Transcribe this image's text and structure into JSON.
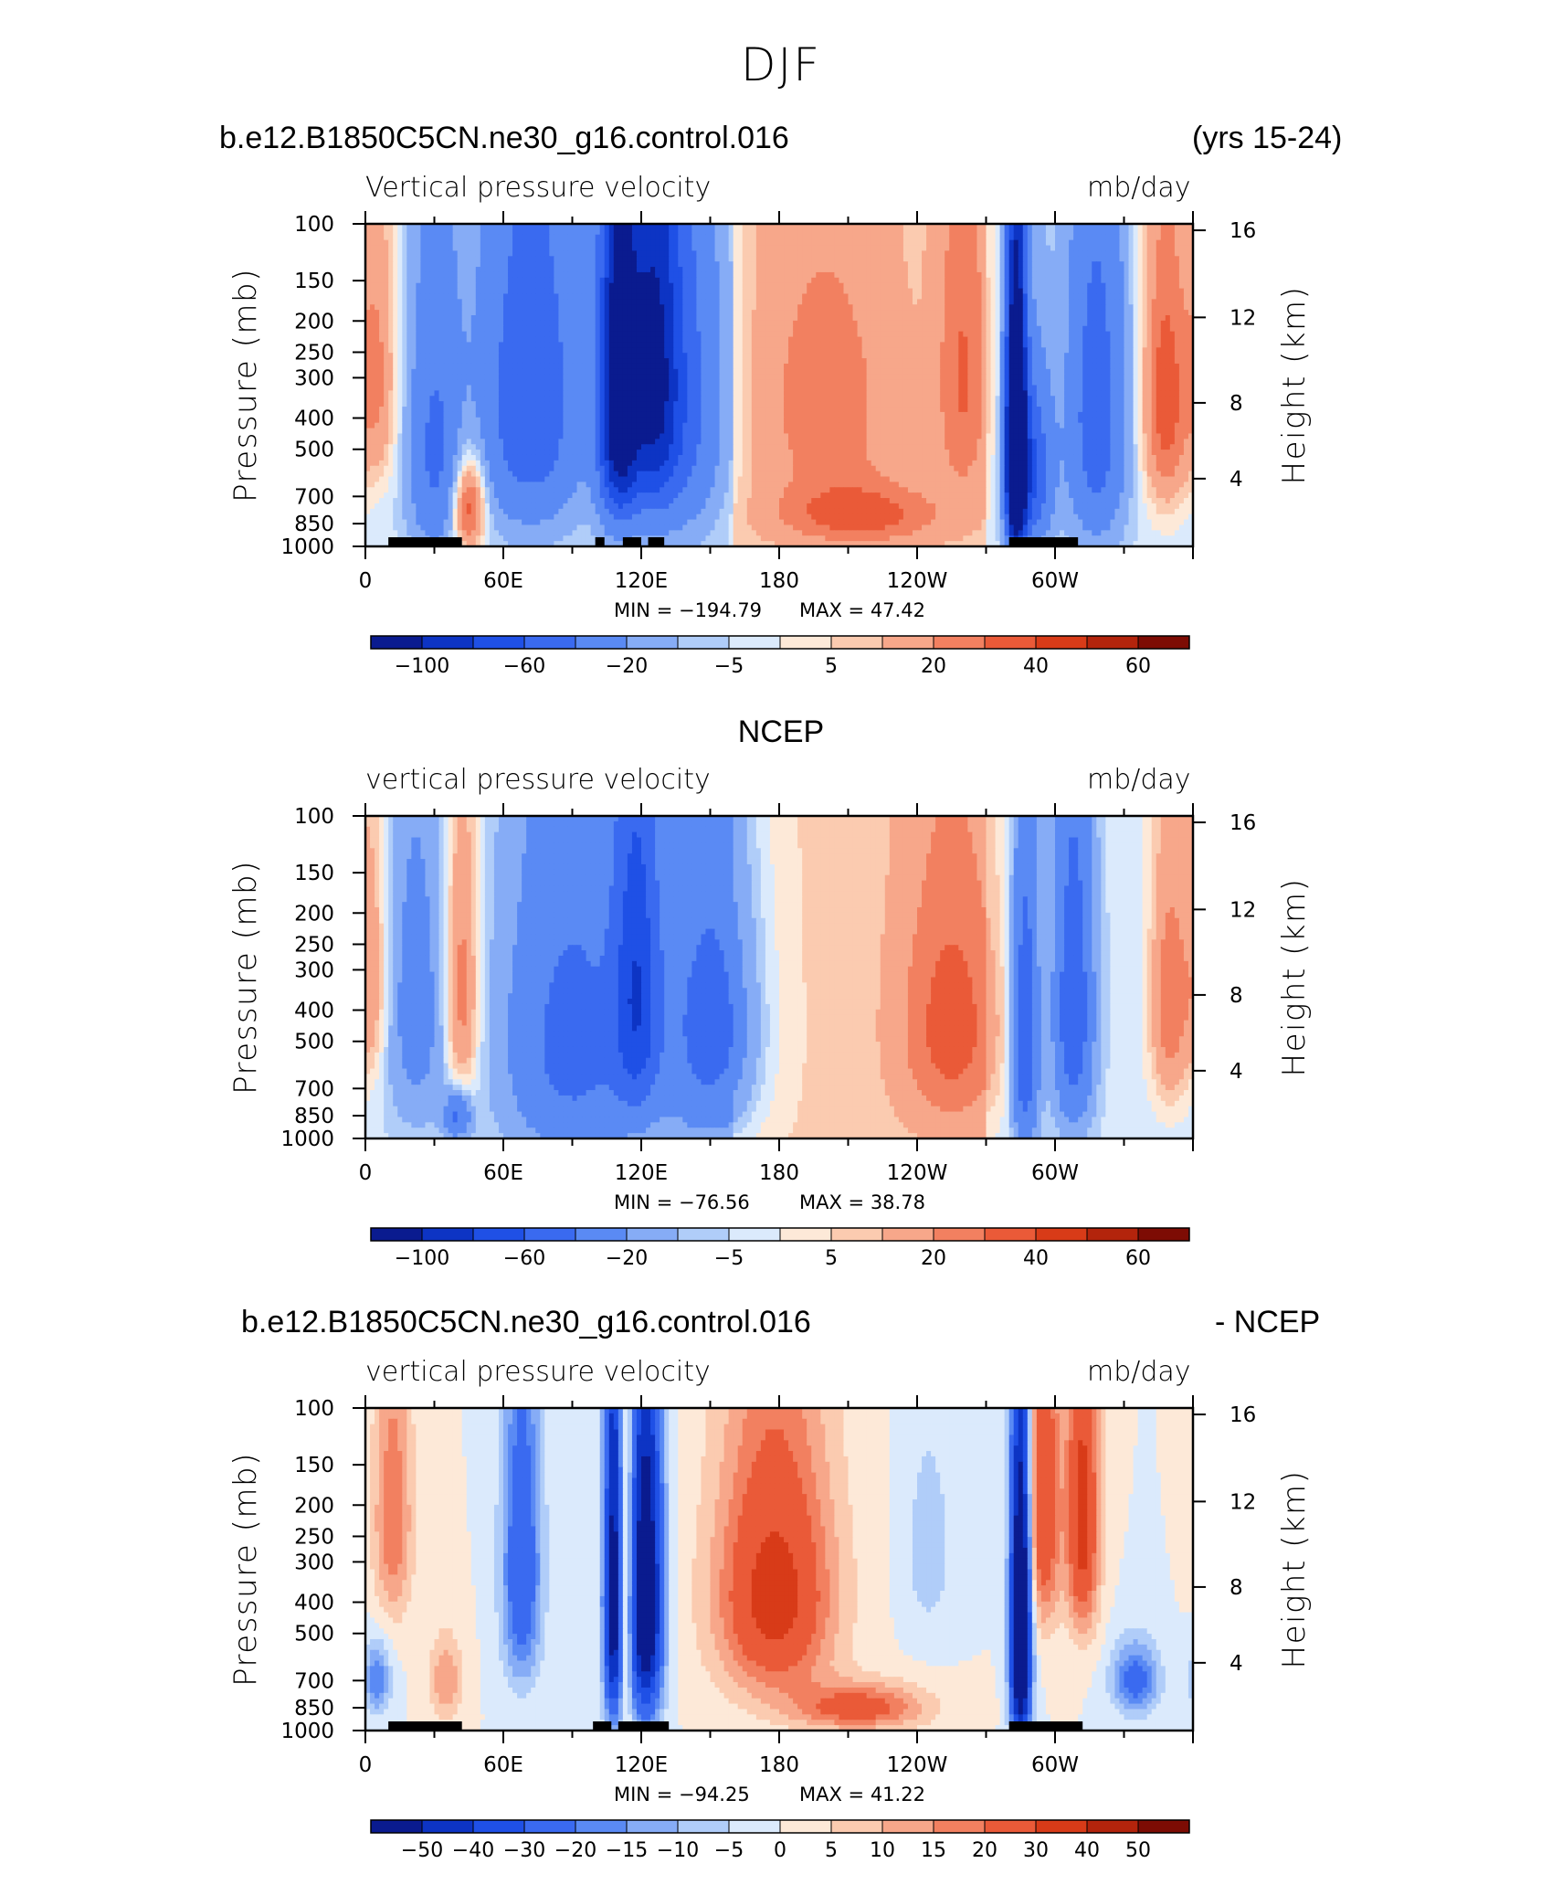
{
  "header": {
    "season": "DJF",
    "case_name": "b.e12.B1850C5CN.ne30_g16.control.016",
    "years": "(yrs 15-24)"
  },
  "chart_data": [
    {
      "type": "heatmap",
      "panel": "model",
      "title": "",
      "variable_label": "Vertical pressure velocity",
      "units_label": "mb/day",
      "ylabel": "Pressure (mb)",
      "y2label": "Height (km)",
      "x_ticks": [
        "0",
        "60E",
        "120E",
        "180",
        "120W",
        "60W"
      ],
      "y_ticks": [
        "100",
        "150",
        "200",
        "250",
        "300",
        "400",
        "500",
        "700",
        "850",
        "1000"
      ],
      "y2_ticks": [
        "16",
        "12",
        "8",
        "4"
      ],
      "min_text": "MIN = −194.79",
      "max_text": "MAX =   47.42",
      "colorbar_labels": [
        "−100",
        "−60",
        "−20",
        "−5",
        "5",
        "20",
        "40",
        "60"
      ],
      "colors": [
        "#0a1b8f",
        "#0d34c4",
        "#1f50e6",
        "#3a6af0",
        "#5a8af4",
        "#86acf6",
        "#b0cdf9",
        "#dbeafc",
        "#fde9d8",
        "#fbcbb0",
        "#f7a78a",
        "#f28060",
        "#ea5a38",
        "#d83b18",
        "#b3240c",
        "#7d0c04"
      ],
      "blobs": [
        {
          "lon": 5,
          "p": 300,
          "wlon": 6,
          "wp": 420,
          "v": 25
        },
        {
          "lon": 30,
          "p": 500,
          "wlon": 8,
          "wp": 700,
          "v": -40
        },
        {
          "lon": 45,
          "p": 750,
          "wlon": 5,
          "wp": 350,
          "v": 45
        },
        {
          "lon": 72,
          "p": 350,
          "wlon": 16,
          "wp": 650,
          "v": -55
        },
        {
          "lon": 110,
          "p": 350,
          "wlon": 6,
          "wp": 600,
          "v": -120
        },
        {
          "lon": 125,
          "p": 300,
          "wlon": 8,
          "wp": 600,
          "v": -90
        },
        {
          "lon": 140,
          "p": 350,
          "wlon": 12,
          "wp": 700,
          "v": -40
        },
        {
          "lon": 200,
          "p": 350,
          "wlon": 22,
          "wp": 500,
          "v": 20
        },
        {
          "lon": 215,
          "p": 800,
          "wlon": 25,
          "wp": 250,
          "v": 30
        },
        {
          "lon": 260,
          "p": 300,
          "wlon": 8,
          "wp": 500,
          "v": 25
        },
        {
          "lon": 283,
          "p": 500,
          "wlon": 3,
          "wp": 650,
          "v": -190
        },
        {
          "lon": 290,
          "p": 600,
          "wlon": 6,
          "wp": 500,
          "v": -60
        },
        {
          "lon": 318,
          "p": 400,
          "wlon": 9,
          "wp": 700,
          "v": -50
        },
        {
          "lon": 348,
          "p": 350,
          "wlon": 7,
          "wp": 500,
          "v": 40
        }
      ],
      "topography_lons": [
        [
          10,
          42
        ],
        [
          100,
          104
        ],
        [
          112,
          120
        ],
        [
          123,
          130
        ],
        [
          280,
          310
        ]
      ]
    },
    {
      "type": "heatmap",
      "panel": "obs",
      "title": "NCEP",
      "variable_label": "vertical pressure velocity",
      "units_label": "mb/day",
      "ylabel": "Pressure (mb)",
      "y2label": "Height (km)",
      "x_ticks": [
        "0",
        "60E",
        "120E",
        "180",
        "120W",
        "60W"
      ],
      "y_ticks": [
        "100",
        "150",
        "200",
        "250",
        "300",
        "400",
        "500",
        "700",
        "850",
        "1000"
      ],
      "y2_ticks": [
        "16",
        "12",
        "8",
        "4"
      ],
      "min_text": "MIN = −76.56",
      "max_text": "MAX =   38.78",
      "colorbar_labels": [
        "−100",
        "−60",
        "−20",
        "−5",
        "5",
        "20",
        "40",
        "60"
      ],
      "colors": [
        "#0a1b8f",
        "#0d34c4",
        "#1f50e6",
        "#3a6af0",
        "#5a8af4",
        "#86acf6",
        "#b0cdf9",
        "#dbeafc",
        "#fde9d8",
        "#fbcbb0",
        "#f7a78a",
        "#f28060",
        "#ea5a38",
        "#d83b18",
        "#b3240c",
        "#7d0c04"
      ],
      "blobs": [
        {
          "lon": 3,
          "p": 320,
          "wlon": 5,
          "wp": 420,
          "v": 20
        },
        {
          "lon": 22,
          "p": 400,
          "wlon": 9,
          "wp": 650,
          "v": -25
        },
        {
          "lon": 42,
          "p": 350,
          "wlon": 5,
          "wp": 500,
          "v": 30
        },
        {
          "lon": 40,
          "p": 850,
          "wlon": 4,
          "wp": 200,
          "v": -40
        },
        {
          "lon": 90,
          "p": 500,
          "wlon": 20,
          "wp": 800,
          "v": -45
        },
        {
          "lon": 118,
          "p": 350,
          "wlon": 7,
          "wp": 600,
          "v": -60
        },
        {
          "lon": 150,
          "p": 450,
          "wlon": 15,
          "wp": 700,
          "v": -45
        },
        {
          "lon": 255,
          "p": 450,
          "wlon": 16,
          "wp": 600,
          "v": 30
        },
        {
          "lon": 287,
          "p": 500,
          "wlon": 4,
          "wp": 700,
          "v": -60
        },
        {
          "lon": 308,
          "p": 400,
          "wlon": 6,
          "wp": 650,
          "v": -55
        },
        {
          "lon": 350,
          "p": 380,
          "wlon": 6,
          "wp": 500,
          "v": 30
        }
      ],
      "topography_lons": []
    },
    {
      "type": "heatmap",
      "panel": "difference",
      "title": "",
      "variable_label": "vertical pressure velocity",
      "units_label": "mb/day",
      "ylabel": "Pressure (mb)",
      "y2label": "Height (km)",
      "x_ticks": [
        "0",
        "60E",
        "120E",
        "180",
        "120W",
        "60W"
      ],
      "y_ticks": [
        "100",
        "150",
        "200",
        "250",
        "300",
        "400",
        "500",
        "700",
        "850",
        "1000"
      ],
      "y2_ticks": [
        "16",
        "12",
        "8",
        "4"
      ],
      "min_text": "MIN = −94.25",
      "max_text": "MAX =   41.22",
      "colorbar_labels": [
        "−50",
        "−40",
        "−30",
        "−20",
        "−15",
        "−10",
        "−5",
        "0",
        "5",
        "10",
        "15",
        "20",
        "30",
        "40",
        "50"
      ],
      "colors": [
        "#0a1b8f",
        "#0d34c4",
        "#1f50e6",
        "#3a6af0",
        "#5a8af4",
        "#86acf6",
        "#b0cdf9",
        "#dbeafc",
        "#fde9d8",
        "#fbcbb0",
        "#f7a78a",
        "#f28060",
        "#ea5a38",
        "#d83b18",
        "#b3240c",
        "#7d0c04"
      ],
      "blobs": [
        {
          "lon": 12,
          "p": 220,
          "wlon": 6,
          "wp": 300,
          "v": 20
        },
        {
          "lon": 5,
          "p": 700,
          "wlon": 4,
          "wp": 250,
          "v": -20
        },
        {
          "lon": 35,
          "p": 700,
          "wlon": 5,
          "wp": 300,
          "v": 15
        },
        {
          "lon": 68,
          "p": 320,
          "wlon": 6,
          "wp": 500,
          "v": -30
        },
        {
          "lon": 108,
          "p": 400,
          "wlon": 3,
          "wp": 700,
          "v": -60
        },
        {
          "lon": 113,
          "p": 350,
          "wlon": 2,
          "wp": 700,
          "v": 25
        },
        {
          "lon": 122,
          "p": 400,
          "wlon": 5,
          "wp": 650,
          "v": -70
        },
        {
          "lon": 178,
          "p": 380,
          "wlon": 18,
          "wp": 500,
          "v": 35
        },
        {
          "lon": 215,
          "p": 850,
          "wlon": 20,
          "wp": 200,
          "v": 25
        },
        {
          "lon": 245,
          "p": 280,
          "wlon": 8,
          "wp": 300,
          "v": -8
        },
        {
          "lon": 285,
          "p": 500,
          "wlon": 3,
          "wp": 700,
          "v": -90
        },
        {
          "lon": 295,
          "p": 200,
          "wlon": 5,
          "wp": 350,
          "v": 30
        },
        {
          "lon": 312,
          "p": 220,
          "wlon": 5,
          "wp": 350,
          "v": 35
        },
        {
          "lon": 335,
          "p": 700,
          "wlon": 7,
          "wp": 250,
          "v": -25
        }
      ],
      "topography_lons": [
        [
          10,
          42
        ],
        [
          99,
          107
        ],
        [
          110,
          132
        ],
        [
          280,
          312
        ]
      ]
    }
  ],
  "panel3_header": {
    "left": "b.e12.B1850C5CN.ne30_g16.control.016",
    "right": "- NCEP"
  }
}
